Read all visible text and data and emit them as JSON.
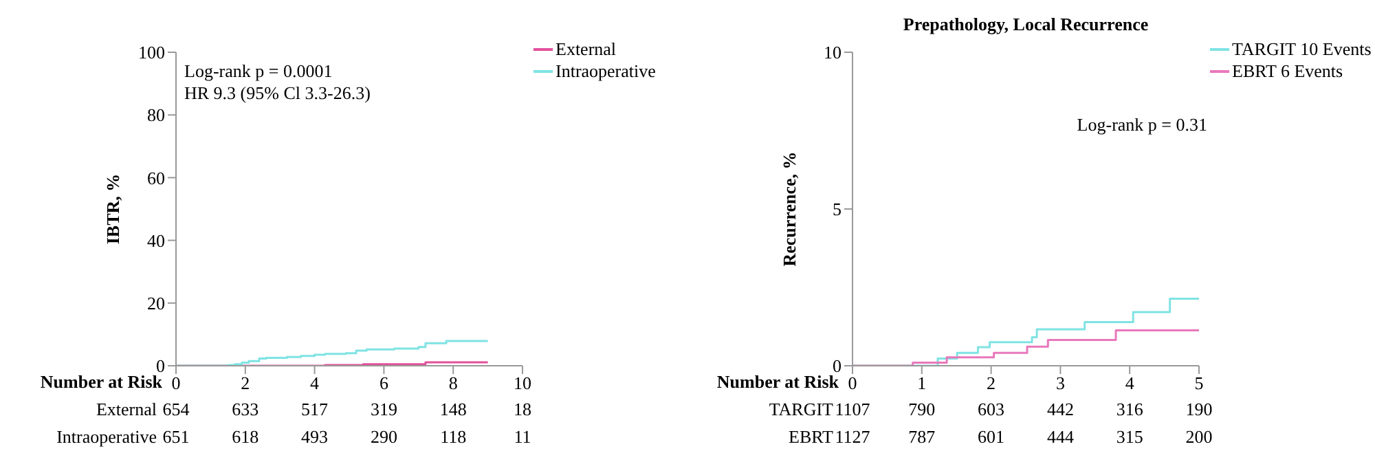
{
  "chart_data": [
    {
      "type": "step",
      "ylabel": "IBTR, %",
      "xlim": [
        0,
        10
      ],
      "xticks": [
        0,
        2,
        4,
        6,
        8,
        10
      ],
      "ylim": [
        0,
        100
      ],
      "yticks": [
        0,
        20,
        40,
        60,
        80,
        100
      ],
      "legend": "top right",
      "series": [
        {
          "name": "External",
          "color": "#e2519c",
          "x": [
            0,
            4.3,
            5.4,
            7.2,
            9
          ],
          "values": [
            0,
            0.2,
            0.5,
            1.1,
            1.1
          ]
        },
        {
          "name": "Intraoperative",
          "color": "#7fe3e3",
          "x": [
            0,
            1.5,
            1.7,
            1.9,
            2.1,
            2.4,
            2.6,
            3.2,
            3.6,
            4.0,
            4.3,
            4.9,
            5.2,
            5.5,
            6.3,
            7.0,
            7.2,
            7.8,
            9
          ],
          "values": [
            0,
            0.2,
            0.5,
            1,
            1.5,
            2.3,
            2.5,
            2.8,
            3.1,
            3.5,
            3.8,
            4.0,
            4.8,
            5.2,
            5.5,
            6.0,
            7.2,
            7.9,
            7.9
          ]
        }
      ],
      "annotations": [
        "Log-rank p = 0.0001",
        "HR 9.3 (95% Cl 3.3-26.3)",
        "Number at Risk",
        "External",
        "654",
        "633",
        "517",
        "319",
        "148",
        "18",
        "Intraoperative",
        "651",
        "618",
        "493",
        "290",
        "118",
        "11"
      ]
    },
    {
      "type": "step",
      "title": "Prepathology, Local Recurrence",
      "ylabel": "Recurrence, %",
      "xlim": [
        0,
        5
      ],
      "xticks": [
        0,
        1,
        2,
        3,
        4,
        5
      ],
      "ylim": [
        0,
        10
      ],
      "yticks": [
        0,
        5,
        10
      ],
      "legend": "top right",
      "series": [
        {
          "name": "TARGIT 10 Events",
          "color": "#7fe3e3",
          "x": [
            0,
            1.23,
            1.51,
            1.81,
            1.98,
            2.59,
            2.66,
            3.35,
            4.05,
            4.58,
            5
          ],
          "values": [
            0,
            0.23,
            0.41,
            0.59,
            0.75,
            0.91,
            1.16,
            1.39,
            1.71,
            2.14,
            2.14
          ]
        },
        {
          "name": "EBRT 6 Events",
          "color": "#e878bb",
          "x": [
            0,
            0.87,
            1.36,
            2.04,
            2.52,
            2.82,
            3.8,
            5
          ],
          "values": [
            0,
            0.1,
            0.27,
            0.41,
            0.61,
            0.82,
            1.13,
            1.13
          ]
        }
      ],
      "annotations": [
        "Log-rank p = 0.31",
        "Number at Risk",
        "TARGIT",
        "1107",
        "790",
        "603",
        "442",
        "316",
        "190",
        "EBRT",
        "1127",
        "787",
        "601",
        "444",
        "315",
        "200"
      ]
    }
  ]
}
